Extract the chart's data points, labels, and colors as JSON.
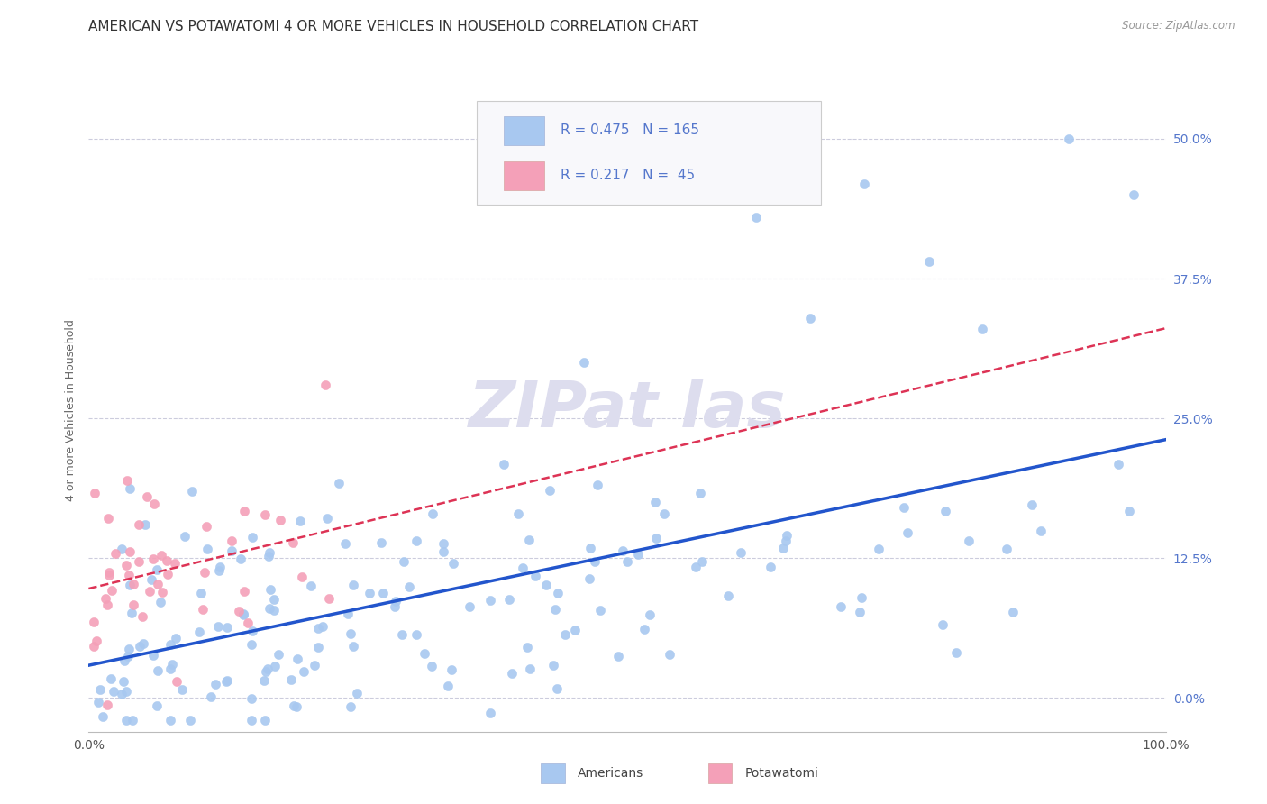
{
  "title": "AMERICAN VS POTAWATOMI 4 OR MORE VEHICLES IN HOUSEHOLD CORRELATION CHART",
  "source": "Source: ZipAtlas.com",
  "ylabel_label": "4 or more Vehicles in Household",
  "xlim": [
    0.0,
    1.0
  ],
  "ylim": [
    -0.03,
    0.545
  ],
  "americans_R": 0.475,
  "americans_N": 165,
  "potawatomi_R": 0.217,
  "potawatomi_N": 45,
  "americans_color": "#A8C8F0",
  "potawatomi_color": "#F4A0B8",
  "americans_line_color": "#2255CC",
  "potawatomi_line_color": "#DD3355",
  "background_color": "#FFFFFF",
  "grid_color": "#CCCCDD",
  "tick_color": "#5577CC",
  "watermark_color": "#DDDDEE",
  "title_fontsize": 11,
  "axis_label_fontsize": 9,
  "tick_fontsize": 10,
  "legend_fontsize": 11
}
